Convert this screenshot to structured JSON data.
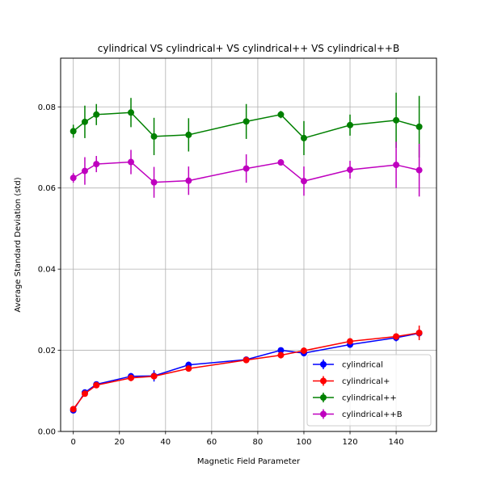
{
  "chart_data": {
    "type": "line",
    "title": "cylindrical VS cylindrical+ VS cylindrical++ VS cylindrical++B",
    "xlabel": "Magnetic Field Parameter",
    "ylabel": "Average Standard Deviation (std)",
    "xlim": [
      -5.5,
      157.5
    ],
    "ylim": [
      0,
      0.092
    ],
    "xticks": [
      0,
      20,
      40,
      60,
      80,
      100,
      120,
      140
    ],
    "xtick_labels": [
      "0",
      "20",
      "40",
      "60",
      "80",
      "100",
      "120",
      "140"
    ],
    "yticks": [
      0,
      0.02,
      0.04,
      0.06,
      0.08
    ],
    "ytick_labels": [
      "0.00",
      "0.02",
      "0.04",
      "0.06",
      "0.08"
    ],
    "grid": true,
    "legend_position": "lower-right",
    "x": [
      0,
      5,
      10,
      25,
      35,
      50,
      75,
      90,
      100,
      120,
      140,
      150
    ],
    "series": [
      {
        "name": "cylindrical",
        "color": "#0000ff",
        "values": [
          0.0052,
          0.0096,
          0.0116,
          0.0136,
          0.0137,
          0.0164,
          0.0177,
          0.02,
          0.0193,
          0.0214,
          0.0231,
          0.0242
        ],
        "errors": [
          0.0004,
          0.0005,
          0.0006,
          0.0008,
          0.0014,
          0.0008,
          0.0006,
          0.0006,
          0.0008,
          0.0008,
          0.0009,
          0.001
        ]
      },
      {
        "name": "cylindrical+",
        "color": "#ff0000",
        "values": [
          0.0055,
          0.0093,
          0.0114,
          0.0132,
          0.0136,
          0.0155,
          0.0176,
          0.0188,
          0.0199,
          0.0222,
          0.0234,
          0.0243
        ],
        "errors": [
          0.0004,
          0.0005,
          0.0006,
          0.0008,
          0.0008,
          0.0006,
          0.0006,
          0.0008,
          0.0008,
          0.0008,
          0.0008,
          0.0018
        ]
      },
      {
        "name": "cylindrical++",
        "color": "#008000",
        "values": [
          0.074,
          0.0763,
          0.0781,
          0.0786,
          0.0727,
          0.0731,
          0.0764,
          0.0781,
          0.0723,
          0.0755,
          0.0767,
          0.0751
        ],
        "errors": [
          0.0016,
          0.004,
          0.0026,
          0.0036,
          0.0046,
          0.0041,
          0.0043,
          0.0009,
          0.0042,
          0.0026,
          0.0068,
          0.0076
        ]
      },
      {
        "name": "cylindrical++B",
        "color": "#bf00bf",
        "values": [
          0.0625,
          0.0642,
          0.0659,
          0.0664,
          0.0614,
          0.0618,
          0.0648,
          0.0663,
          0.0617,
          0.0645,
          0.0657,
          0.0644
        ],
        "errors": [
          0.0012,
          0.0034,
          0.002,
          0.003,
          0.0038,
          0.0035,
          0.0035,
          0.0007,
          0.0036,
          0.0022,
          0.0057,
          0.0065
        ]
      }
    ]
  }
}
